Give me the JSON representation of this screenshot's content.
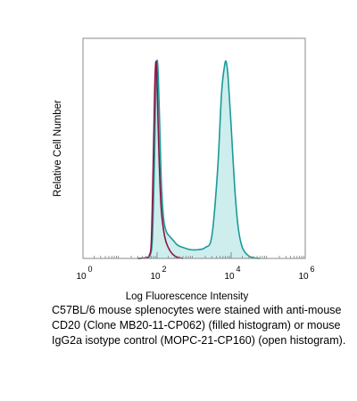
{
  "chart_data": {
    "type": "area",
    "xlabel": "Log Fluorescence Intensity",
    "ylabel": "Relative Cell Number",
    "x_scale": "log10",
    "xlim": [
      1,
      1000000
    ],
    "ylim": [
      0,
      100
    ],
    "x_ticks": [
      {
        "base": "10",
        "exp": "0",
        "value": 1
      },
      {
        "base": "10",
        "exp": "2",
        "value": 100
      },
      {
        "base": "10",
        "exp": "4",
        "value": 10000
      },
      {
        "base": "10",
        "exp": "6",
        "value": 1000000
      }
    ],
    "series": [
      {
        "style": "filled",
        "color": "#1a9a99",
        "fill": "#cdeeed",
        "points": [
          [
            30,
            0
          ],
          [
            50,
            0.3
          ],
          [
            65,
            1.5
          ],
          [
            75,
            10
          ],
          [
            85,
            45
          ],
          [
            92,
            78
          ],
          [
            100,
            90
          ],
          [
            108,
            82
          ],
          [
            118,
            60
          ],
          [
            130,
            35
          ],
          [
            150,
            18
          ],
          [
            180,
            12
          ],
          [
            220,
            10
          ],
          [
            280,
            8
          ],
          [
            360,
            6
          ],
          [
            500,
            5
          ],
          [
            800,
            4
          ],
          [
            1300,
            4
          ],
          [
            2000,
            5
          ],
          [
            3000,
            10
          ],
          [
            4300,
            40
          ],
          [
            5500,
            75
          ],
          [
            6700,
            88
          ],
          [
            7400,
            89
          ],
          [
            8300,
            82
          ],
          [
            10000,
            60
          ],
          [
            12500,
            32
          ],
          [
            15500,
            14
          ],
          [
            20000,
            5
          ],
          [
            28000,
            1.5
          ],
          [
            40000,
            0.3
          ],
          [
            60000,
            0
          ]
        ]
      },
      {
        "style": "open",
        "color": "#8a1747",
        "points": [
          [
            30,
            0
          ],
          [
            50,
            0.3
          ],
          [
            62,
            1.5
          ],
          [
            70,
            8
          ],
          [
            78,
            40
          ],
          [
            86,
            76
          ],
          [
            92,
            89
          ],
          [
            98,
            85
          ],
          [
            105,
            65
          ],
          [
            115,
            42
          ],
          [
            130,
            22
          ],
          [
            160,
            10
          ],
          [
            200,
            5
          ],
          [
            260,
            2
          ],
          [
            350,
            0.5
          ],
          [
            500,
            0
          ]
        ]
      }
    ]
  },
  "caption": "C57BL/6 mouse splenocytes were stained with anti-mouse CD20 (Clone MB20-11-CP062) (filled histogram) or mouse IgG2a isotype control (MOPC-21-CP160) (open histogram)."
}
